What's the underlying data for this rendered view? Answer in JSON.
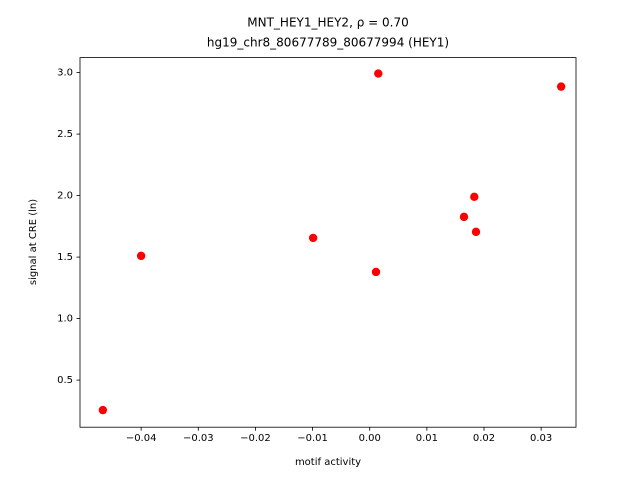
{
  "chart_data": {
    "type": "scatter",
    "title": [
      "MNT_HEY1_HEY2, ρ = 0.70",
      "hg19_chr8_80677789_80677994 (HEY1)"
    ],
    "xlabel": "motif activity",
    "ylabel": "signal at CRE (ln)",
    "color": "#ff0000",
    "x": [
      -0.0467,
      -0.04,
      -0.0099,
      0.0011,
      0.0015,
      0.0165,
      0.0183,
      0.0186,
      0.0335
    ],
    "y": [
      0.256,
      1.51,
      1.656,
      1.379,
      2.992,
      1.827,
      1.99,
      1.705,
      2.886
    ],
    "xlim": [
      -0.0507,
      0.0361
    ],
    "ylim": [
      0.117,
      3.122
    ],
    "xticks": [
      {
        "value": -0.04,
        "label": "−0.04"
      },
      {
        "value": -0.03,
        "label": "−0.03"
      },
      {
        "value": -0.02,
        "label": "−0.02"
      },
      {
        "value": -0.01,
        "label": "−0.01"
      },
      {
        "value": 0,
        "label": "0.00"
      },
      {
        "value": 0.01,
        "label": "0.01"
      },
      {
        "value": 0.02,
        "label": "0.02"
      },
      {
        "value": 0.03,
        "label": "0.03"
      }
    ],
    "yticks": [
      0.5,
      {
        "value": 1,
        "label": "1.0"
      },
      1.5,
      {
        "value": 2,
        "label": "2.0"
      },
      2.5,
      {
        "value": 3,
        "label": "3.0"
      }
    ],
    "grid": false
  }
}
